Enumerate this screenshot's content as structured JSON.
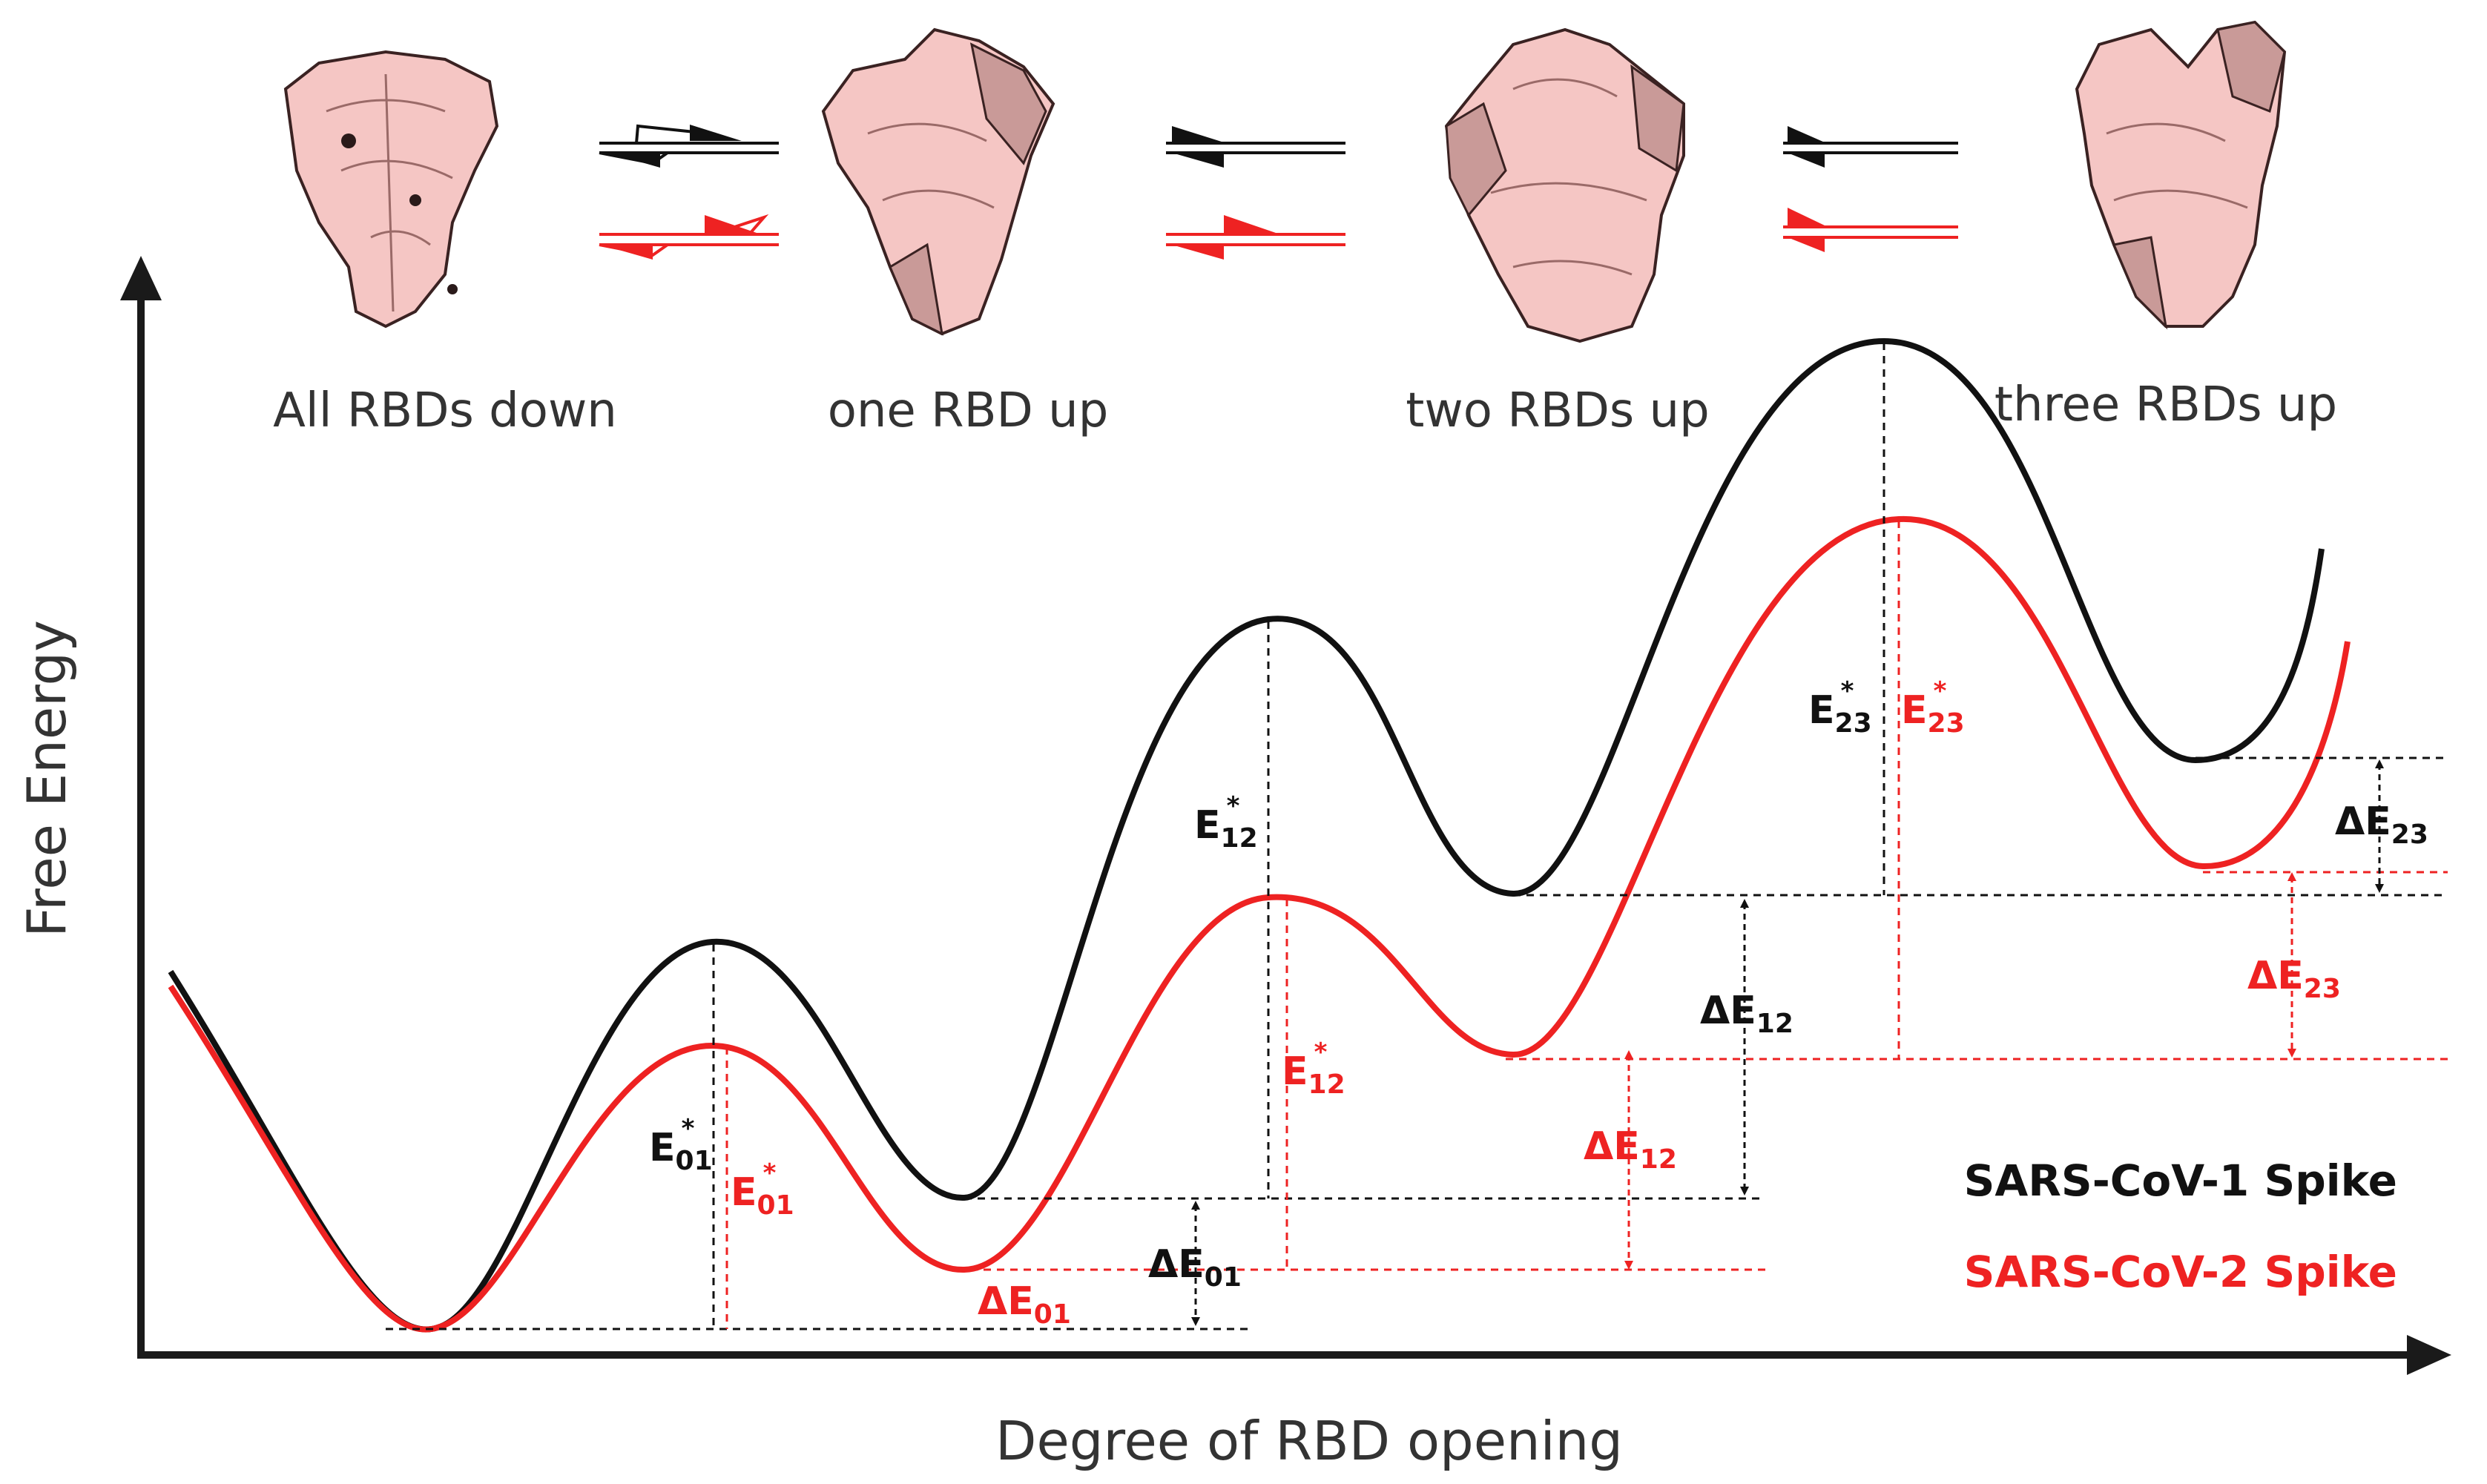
{
  "states": [
    {
      "label": "All RBDs down"
    },
    {
      "label": "one RBD up"
    },
    {
      "label": "two RBDs up"
    },
    {
      "label": "three RBDs up"
    }
  ],
  "axes": {
    "y_label": "Free Energy",
    "x_label": "Degree of RBD opening"
  },
  "annotations": {
    "e01_black": {
      "main": "E",
      "sub": "01",
      "sup": "*"
    },
    "e01_red": {
      "main": "E",
      "sub": "01",
      "sup": "*"
    },
    "e12_black": {
      "main": "E",
      "sub": "12",
      "sup": "*"
    },
    "e12_red": {
      "main": "E",
      "sub": "12",
      "sup": "*"
    },
    "e23_black": {
      "main": "E",
      "sub": "23",
      "sup": "*"
    },
    "e23_red": {
      "main": "E",
      "sub": "23",
      "sup": "*"
    },
    "de01_black": {
      "main": "ΔE",
      "sub": "01"
    },
    "de01_red": {
      "main": "ΔE",
      "sub": "01"
    },
    "de12_black": {
      "main": "ΔE",
      "sub": "12"
    },
    "de12_red": {
      "main": "ΔE",
      "sub": "12"
    },
    "de23_black": {
      "main": "ΔE",
      "sub": "23"
    },
    "de23_red": {
      "main": "ΔE",
      "sub": "23"
    }
  },
  "legend": [
    {
      "label": "SARS-CoV-1 Spike",
      "color": "#111111"
    },
    {
      "label": "SARS-CoV-2 Spike",
      "color": "#ee2222"
    }
  ],
  "colors": {
    "sars_cov_1": "#111111",
    "sars_cov_2": "#ee2222",
    "protein": "#f5c6c4",
    "protein_shade": "#c99a98"
  }
}
